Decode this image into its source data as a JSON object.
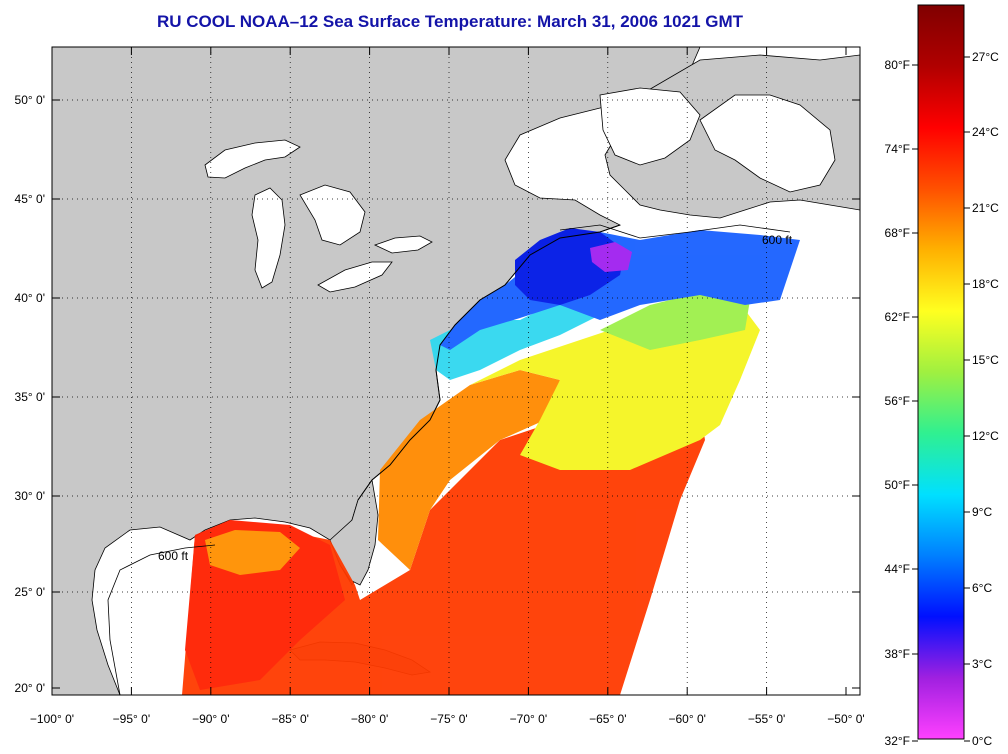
{
  "title": "RU COOL  NOAA–12  Sea Surface Temperature:  March 31, 2006 1021 GMT",
  "map": {
    "lon_labels": [
      "−100° 0'",
      "−95° 0'",
      "−90° 0'",
      "−85° 0'",
      "−80° 0'",
      "−75° 0'",
      "−70° 0'",
      "−65° 0'",
      "−60° 0'",
      "−55° 0'",
      "−50° 0'"
    ],
    "lat_labels": [
      "50° 0'",
      "45° 0'",
      "40° 0'",
      "35° 0'",
      "30° 0'",
      "25° 0'",
      "20° 0'"
    ],
    "isobath_label": "600 ft",
    "colors": {
      "land": "#c8c8c8",
      "lakes": "#ffffff",
      "grid": "#000000",
      "title": "#1414a8"
    }
  },
  "colorbar": {
    "fahrenheit": [
      "80°F",
      "74°F",
      "68°F",
      "62°F",
      "56°F",
      "50°F",
      "44°F",
      "38°F",
      "32°F"
    ],
    "celsius": [
      "27°C",
      "24°C",
      "21°C",
      "18°C",
      "15°C",
      "12°C",
      "9°C",
      "6°C",
      "3°C",
      "0°C"
    ],
    "stops": [
      "#ff40ff",
      "#a020e0",
      "#0010ff",
      "#0080ff",
      "#00e0ff",
      "#30f090",
      "#a0f040",
      "#ffff20",
      "#ffb000",
      "#ff5000",
      "#ff0000",
      "#b00000",
      "#800000"
    ]
  }
}
